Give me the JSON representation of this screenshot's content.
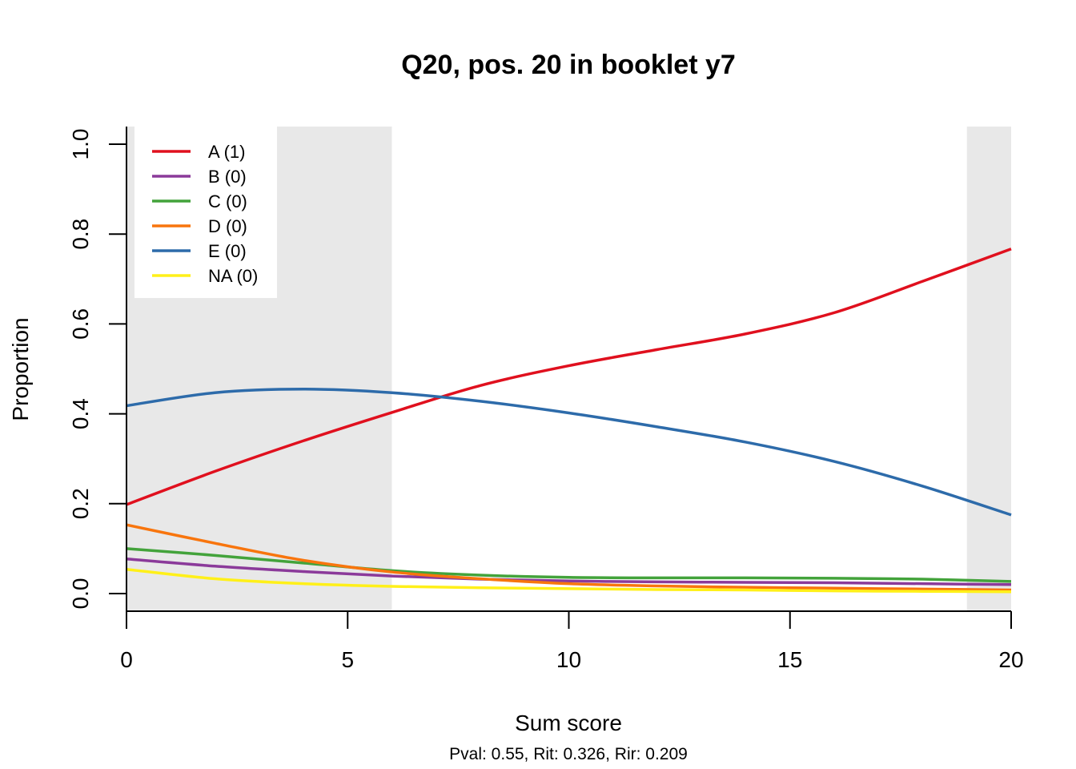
{
  "chart_data": {
    "type": "line",
    "title": "Q20, pos. 20 in booklet y7",
    "xlabel": "Sum score",
    "ylabel": "Proportion",
    "subtitle": "Pval: 0.55, Rit: 0.326, Rir: 0.209",
    "xlim": [
      0,
      20
    ],
    "ylim": [
      0,
      1
    ],
    "x_ticks": [
      "0",
      "5",
      "10",
      "15",
      "20"
    ],
    "y_ticks": [
      "0.0",
      "0.2",
      "0.4",
      "0.6",
      "0.8",
      "1.0"
    ],
    "grid": false,
    "legend_position": "top-left",
    "shaded_ranges": [
      [
        0,
        6
      ],
      [
        19,
        20
      ]
    ],
    "shade_color": "#E8E8E8",
    "x": [
      0,
      2,
      4,
      6,
      8,
      10,
      12,
      14,
      16,
      18,
      20
    ],
    "series": [
      {
        "name": "A (1)",
        "color": "#E0101E",
        "values": [
          0.198,
          0.272,
          0.34,
          0.403,
          0.463,
          0.507,
          0.543,
          0.578,
          0.625,
          0.695,
          0.767
        ]
      },
      {
        "name": "B (0)",
        "color": "#8B3A9A",
        "values": [
          0.077,
          0.061,
          0.049,
          0.039,
          0.032,
          0.028,
          0.026,
          0.025,
          0.024,
          0.022,
          0.02
        ]
      },
      {
        "name": "C (0)",
        "color": "#43A33B",
        "values": [
          0.1,
          0.085,
          0.068,
          0.051,
          0.041,
          0.036,
          0.035,
          0.035,
          0.034,
          0.032,
          0.027
        ]
      },
      {
        "name": "D (0)",
        "color": "#F8750D",
        "values": [
          0.153,
          0.112,
          0.074,
          0.048,
          0.033,
          0.022,
          0.017,
          0.014,
          0.012,
          0.01,
          0.008
        ]
      },
      {
        "name": "E (0)",
        "color": "#2D6BAA",
        "values": [
          0.418,
          0.447,
          0.455,
          0.447,
          0.428,
          0.402,
          0.371,
          0.337,
          0.294,
          0.239,
          0.175
        ]
      },
      {
        "name": "NA (0)",
        "color": "#FFF019",
        "values": [
          0.054,
          0.033,
          0.022,
          0.016,
          0.013,
          0.011,
          0.009,
          0.008,
          0.006,
          0.005,
          0.004
        ]
      }
    ]
  }
}
